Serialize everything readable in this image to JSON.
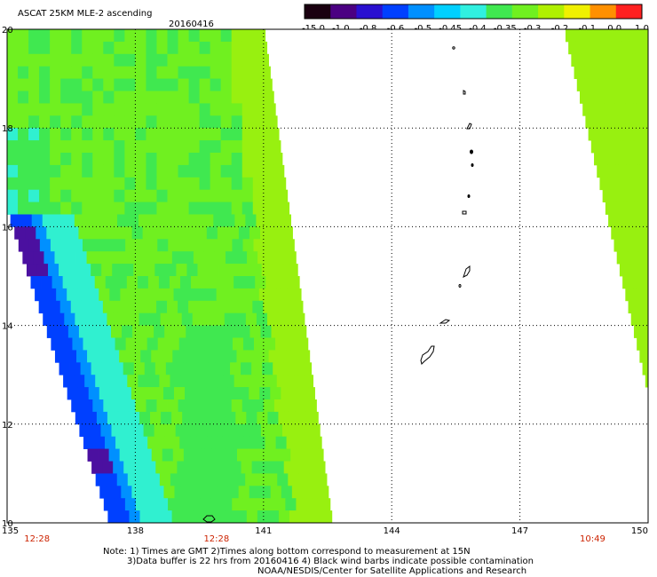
{
  "chart_data": {
    "type": "heatmap",
    "title": "ASCAT 25KM MLE-2 ascending",
    "date": "20160416",
    "xlim": [
      135,
      150
    ],
    "ylim": [
      10,
      20
    ],
    "x_ticks": [
      "135",
      "138",
      "141",
      "144",
      "147",
      "150"
    ],
    "y_ticks": [
      "20",
      "18",
      "16",
      "14",
      "12",
      "10"
    ],
    "colorbar": {
      "labels": [
        "-15.0",
        "-1.0",
        "-0.8",
        "-0.6",
        "-0.5",
        "-0.45",
        "-0.4",
        "-0.35",
        "-0.3",
        "-0.2",
        "-0.1",
        "0.0",
        "1.0"
      ],
      "colors": [
        "#1a0010",
        "#4b0082",
        "#2a10d0",
        "#0040ff",
        "#0090ff",
        "#00d0ff",
        "#30f0e0",
        "#40e850",
        "#70f020",
        "#b0f000",
        "#f0f000",
        "#ff9000",
        "#ff2020"
      ]
    },
    "grid": true,
    "swaths": [
      {
        "name": "west",
        "time": "12:28",
        "extent": [
          135.0,
          141.6
        ],
        "typical_value": -0.35
      },
      {
        "name": "east",
        "time": "10:49",
        "extent": [
          148.0,
          150.0
        ],
        "typical_value": -0.3
      }
    ],
    "time_labels": [
      {
        "lon": 135.7,
        "text": "12:28"
      },
      {
        "lon": 139.9,
        "text": "12:28"
      },
      {
        "lon": 148.7,
        "text": "10:49"
      }
    ],
    "notes": [
      "Note: 1) Times are GMT 2)Times along bottom correspond to measurement at 15N",
      "3)Data buffer is 22 hrs from 20160416 4) Black wind barbs indicate possible contamination",
      "NOAA/NESDIS/Center for Satellite Applications and Research"
    ]
  }
}
